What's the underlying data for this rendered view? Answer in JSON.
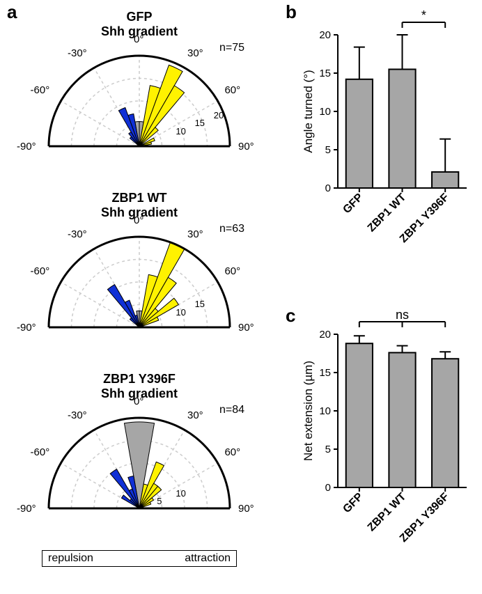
{
  "panels": {
    "a": {
      "label": "a"
    },
    "b": {
      "label": "b"
    },
    "c": {
      "label": "c"
    }
  },
  "polar_grid": {
    "outer_radius": 130,
    "angle_labels": [
      "-90°",
      "-60°",
      "-30°",
      "0°",
      "30°",
      "60°",
      "90°"
    ],
    "angle_values": [
      -90,
      -60,
      -30,
      0,
      30,
      60,
      90
    ],
    "ring_color": "#cccccc",
    "spoke_color": "#cccccc",
    "dash": "4 4",
    "axis_color": "#000000",
    "axis_width": 3
  },
  "legend": {
    "left": "repulsion",
    "right": "attraction"
  },
  "colors": {
    "blue": "#1030d6",
    "yellow": "#fff200",
    "gray": "#a6a6a6",
    "bar_fill": "#a6a6a6",
    "bar_stroke": "#000000"
  },
  "polars": [
    {
      "title_line1": "GFP",
      "title_line2": "Shh gradient",
      "n_label": "n=75",
      "r_max": 22,
      "r_ticks": [
        10,
        15,
        20
      ],
      "sectors": [
        {
          "a0": 0,
          "a1": 10,
          "r": 6,
          "fill": "gray"
        },
        {
          "a0": 10,
          "a1": 20,
          "r": 15,
          "fill": "yellow"
        },
        {
          "a0": 20,
          "a1": 30,
          "r": 21,
          "fill": "yellow"
        },
        {
          "a0": 30,
          "a1": 40,
          "r": 17,
          "fill": "yellow"
        },
        {
          "a0": 40,
          "a1": 50,
          "r": 6,
          "fill": "yellow"
        },
        {
          "a0": 60,
          "a1": 70,
          "r": 4,
          "fill": "yellow"
        },
        {
          "a0": 70,
          "a1": 80,
          "r": 3,
          "fill": "yellow"
        },
        {
          "a0": -10,
          "a1": 0,
          "r": 6,
          "fill": "gray"
        },
        {
          "a0": -20,
          "a1": -10,
          "r": 8,
          "fill": "blue"
        },
        {
          "a0": -30,
          "a1": -20,
          "r": 10,
          "fill": "blue"
        },
        {
          "a0": -40,
          "a1": -30,
          "r": 4,
          "fill": "blue"
        },
        {
          "a0": -50,
          "a1": -40,
          "r": 3,
          "fill": "blue"
        }
      ]
    },
    {
      "title_line1": "ZBP1 WT",
      "title_line2": "Shh gradient",
      "n_label": "n=63",
      "r_max": 22,
      "r_ticks": [
        10,
        15
      ],
      "sectors": [
        {
          "a0": 0,
          "a1": 10,
          "r": 4,
          "fill": "gray"
        },
        {
          "a0": 10,
          "a1": 20,
          "r": 13,
          "fill": "yellow"
        },
        {
          "a0": 20,
          "a1": 30,
          "r": 22,
          "fill": "yellow"
        },
        {
          "a0": 30,
          "a1": 40,
          "r": 14,
          "fill": "yellow"
        },
        {
          "a0": 40,
          "a1": 50,
          "r": 6,
          "fill": "yellow"
        },
        {
          "a0": 50,
          "a1": 60,
          "r": 11,
          "fill": "yellow"
        },
        {
          "a0": 60,
          "a1": 70,
          "r": 5,
          "fill": "yellow"
        },
        {
          "a0": -10,
          "a1": 0,
          "r": 4,
          "fill": "gray"
        },
        {
          "a0": -20,
          "a1": -10,
          "r": 3,
          "fill": "blue"
        },
        {
          "a0": -30,
          "a1": -20,
          "r": 7,
          "fill": "blue"
        },
        {
          "a0": -40,
          "a1": -30,
          "r": 12,
          "fill": "blue"
        },
        {
          "a0": -50,
          "a1": -40,
          "r": 3,
          "fill": "blue"
        }
      ]
    },
    {
      "title_line1": "ZBP1 Y396F",
      "title_line2": "Shh gradient",
      "n_label": "n=84",
      "r_max": 22,
      "r_ticks": [
        5,
        10
      ],
      "sectors": [
        {
          "a0": -10,
          "a1": 10,
          "r": 21,
          "fill": "gray"
        },
        {
          "a0": 10,
          "a1": 20,
          "r": 6,
          "fill": "yellow"
        },
        {
          "a0": 20,
          "a1": 30,
          "r": 12,
          "fill": "yellow"
        },
        {
          "a0": 30,
          "a1": 40,
          "r": 7,
          "fill": "yellow"
        },
        {
          "a0": 40,
          "a1": 50,
          "r": 7,
          "fill": "yellow"
        },
        {
          "a0": 50,
          "a1": 60,
          "r": 4,
          "fill": "yellow"
        },
        {
          "a0": 60,
          "a1": 70,
          "r": 3,
          "fill": "yellow"
        },
        {
          "a0": -20,
          "a1": -10,
          "r": 8,
          "fill": "blue"
        },
        {
          "a0": -30,
          "a1": -20,
          "r": 5,
          "fill": "blue"
        },
        {
          "a0": -40,
          "a1": -30,
          "r": 11,
          "fill": "blue"
        },
        {
          "a0": -50,
          "a1": -40,
          "r": 3,
          "fill": "blue"
        },
        {
          "a0": -60,
          "a1": -50,
          "r": 5,
          "fill": "blue"
        }
      ]
    }
  ],
  "bar_b": {
    "ylabel": "Angle turned (°)",
    "ymin": 0,
    "ymax": 20,
    "ystep": 5,
    "categories": [
      "GFP",
      "ZBP1 WT",
      "ZBP1 Y396F"
    ],
    "values": [
      14.2,
      15.5,
      2.1
    ],
    "errors": [
      4.2,
      4.5,
      4.3
    ],
    "sig": {
      "from": 1,
      "to": 2,
      "label": "*"
    }
  },
  "bar_c": {
    "ylabel": "Net extension (µm)",
    "ymin": 0,
    "ymax": 20,
    "ystep": 5,
    "categories": [
      "GFP",
      "ZBP1 WT",
      "ZBP1 Y396F"
    ],
    "values": [
      18.8,
      17.6,
      16.8
    ],
    "errors": [
      1.0,
      0.9,
      0.9
    ],
    "sig": {
      "from": 0,
      "to": 2,
      "label": "ns",
      "mid_drop": true
    }
  }
}
